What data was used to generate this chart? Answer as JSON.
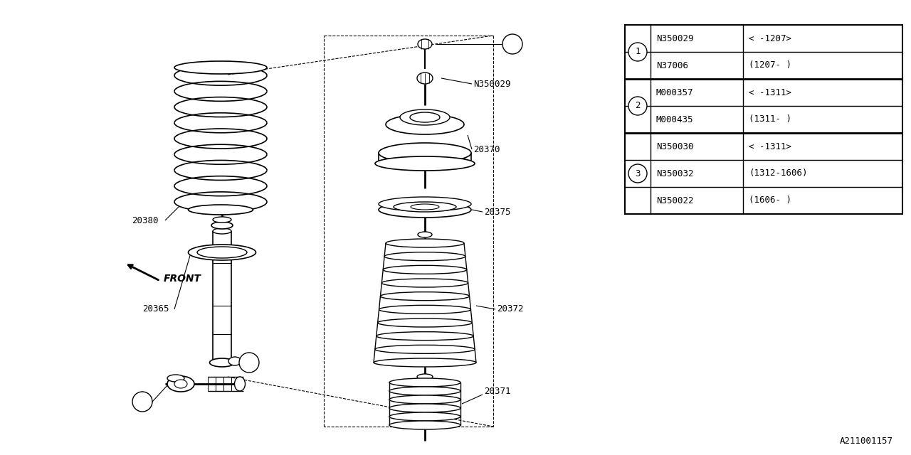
{
  "bg_color": "#ffffff",
  "line_color": "#000000",
  "fig_width": 12.8,
  "fig_height": 6.4,
  "watermark": "A211001157",
  "table": {
    "rows": [
      {
        "circle": "1",
        "part": "N350029",
        "note": "< -1207>"
      },
      {
        "circle": "",
        "part": "N37006",
        "note": "(1207- )"
      },
      {
        "circle": "2",
        "part": "M000357",
        "note": "< -1311>"
      },
      {
        "circle": "",
        "part": "M000435",
        "note": "(1311- )"
      },
      {
        "circle": "",
        "part": "N350030",
        "note": "< -1311>"
      },
      {
        "circle": "3",
        "part": "N350032",
        "note": "(1312-1606)"
      },
      {
        "circle": "",
        "part": "N350022",
        "note": "(1606- )"
      }
    ]
  }
}
